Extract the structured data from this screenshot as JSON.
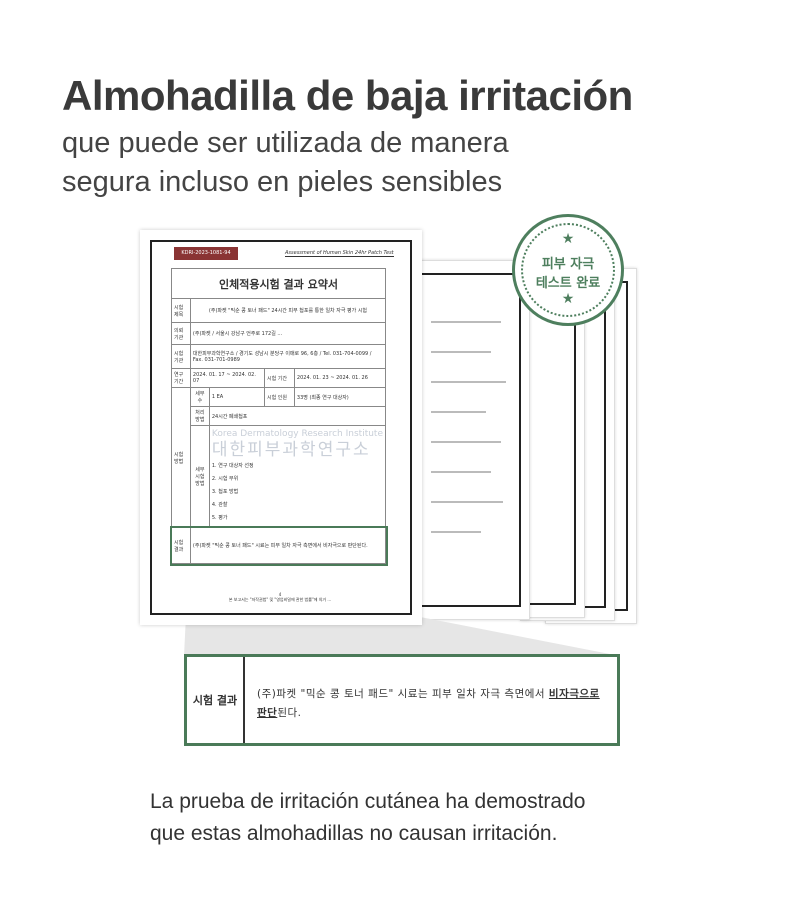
{
  "header": {
    "title": "Almohadilla de baja irritación",
    "subtitle_line1": "que puede ser utilizada de manera",
    "subtitle_line2": "segura incluso en pieles sensibles"
  },
  "seal": {
    "line1": "피부 자극",
    "line2": "테스트 완료",
    "star": "★"
  },
  "document": {
    "id": "KDRI-2023-1081-94",
    "english_title": "Assessment of Human Skin 24hr Patch Test",
    "title": "인체적용시험 결과 요약서",
    "rows": [
      {
        "label": "시험 제목",
        "value": "(주)파켓 \"믹순 콩 토너 패드\" 24시간 피부 첩포를 통한 일차 자극 평가 시험"
      },
      {
        "label": "의뢰 기관",
        "value": "(주)파켓 / 서울시 강남구 언주로 172길 ..."
      },
      {
        "label": "시험 기관",
        "value": "대한피부과학연구소 / 경기도 성남시 분당구 이매로 96, 6층 / Tel. 031-704-0099 / Fax. 031-701-0989"
      },
      {
        "label": "연구 기간",
        "value": "2024. 01. 17 ~ 2024. 02. 07",
        "label2": "시험 기간",
        "value2": "2024. 01. 23 ~ 2024. 01. 26"
      },
      {
        "label": "세부 수",
        "value": "1 EA",
        "label2": "시험 인원",
        "value2": "33명 (최종 연구 대상자)"
      },
      {
        "label": "처리 방법",
        "value": "24시간 폐쇄첩포"
      }
    ],
    "method_label": "시험 방법",
    "detail_label": "세부 시험 방법",
    "method_steps": [
      "1. 연구 대상자 선정",
      "2. 시험 부위",
      "3. 첩포 방법",
      "4. 관찰",
      "5. 평가"
    ],
    "result_label": "시험 결과",
    "result_text": "(주)파켓 \"믹순 콩 토너 패드\" 시료는 피부 일차 자극 측면에서 비자극으로 판단된다.",
    "watermark_en": "Korea Dermatology Research Institute",
    "watermark_ko": "대한피부과학연구소",
    "page": "4",
    "footer": "본 보고서는 \"저작권법\" 및 \"영업비밀에 관한 법률\"에 의거 ..."
  },
  "callout": {
    "label": "시험 결과",
    "text_pre": "(주)파켓 \"믹순 콩 토너 패드\" 시료는 피부 일차 자극 측면에서 ",
    "text_em1": "비자극으로",
    "text_em2": "판단",
    "text_post": "된다."
  },
  "footer": {
    "line1": "La prueba de irritación cutánea ha demostrado",
    "line2": "que estas almohadillas no causan irritación."
  },
  "colors": {
    "green": "#4a7a58",
    "id_badge": "#8a3434"
  }
}
